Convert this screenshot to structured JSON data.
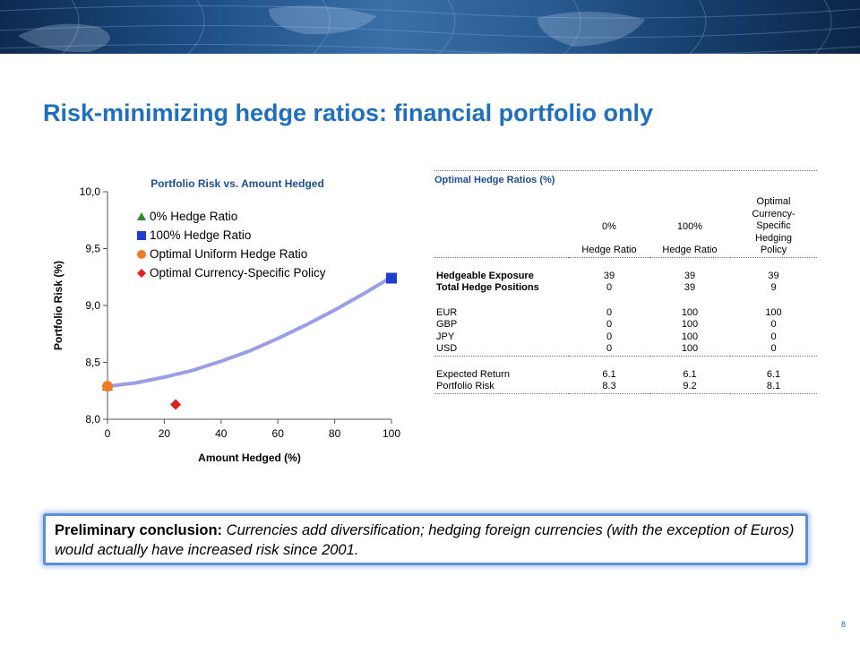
{
  "page": {
    "title": "Risk-minimizing hedge ratios: financial portfolio only",
    "page_number": "8"
  },
  "chart_data": {
    "type": "scatter",
    "title": "Portfolio Risk vs. Amount Hedged",
    "xlabel": "Amount Hedged (%)",
    "ylabel": "Portfolio Risk (%)",
    "xlim": [
      0,
      100
    ],
    "ylim": [
      8.0,
      10.0
    ],
    "x_ticks": [
      "0",
      "20",
      "40",
      "60",
      "80",
      "100"
    ],
    "y_ticks": [
      "8,0",
      "8,5",
      "9,0",
      "9,5",
      "10,0"
    ],
    "curve": {
      "x": [
        0,
        10,
        20,
        30,
        40,
        50,
        60,
        70,
        80,
        90,
        100
      ],
      "y": [
        8.29,
        8.32,
        8.37,
        8.43,
        8.51,
        8.6,
        8.71,
        8.83,
        8.96,
        9.1,
        9.25
      ]
    },
    "series": [
      {
        "name": "0% Hedge Ratio",
        "marker": "triangle",
        "color": "#2e8b2e",
        "x": [
          0
        ],
        "y": [
          8.29
        ]
      },
      {
        "name": "100% Hedge Ratio",
        "marker": "square",
        "color": "#1f3fcf",
        "x": [
          100
        ],
        "y": [
          9.24
        ]
      },
      {
        "name": "Optimal Uniform Hedge Ratio",
        "marker": "circle",
        "color": "#f07c2a",
        "x": [
          0
        ],
        "y": [
          8.29
        ]
      },
      {
        "name": "Optimal Currency-Specific Policy",
        "marker": "diamond",
        "color": "#e0201a",
        "x": [
          24
        ],
        "y": [
          8.13
        ]
      }
    ],
    "legend_position": "top-left",
    "curve_color": "#9a9ee8"
  },
  "table": {
    "title": "Optimal Hedge Ratios (%)",
    "columns": [
      {
        "top": "0%",
        "bottom": "Hedge Ratio"
      },
      {
        "top": "100%",
        "bottom": "Hedge Ratio"
      },
      {
        "lines": [
          "Optimal",
          "Currency-",
          "Specific",
          "Hedging",
          "Policy"
        ]
      }
    ],
    "rows_a": [
      {
        "label": "Hedgeable Exposure",
        "values": [
          "39",
          "39",
          "39"
        ]
      },
      {
        "label": "Total Hedge Positions",
        "values": [
          "0",
          "39",
          "9"
        ]
      }
    ],
    "rows_b": [
      {
        "label": "EUR",
        "values": [
          "0",
          "100",
          "100"
        ]
      },
      {
        "label": "GBP",
        "values": [
          "0",
          "100",
          "0"
        ]
      },
      {
        "label": "JPY",
        "values": [
          "0",
          "100",
          "0"
        ]
      },
      {
        "label": "USD",
        "values": [
          "0",
          "100",
          "0"
        ]
      }
    ],
    "rows_c": [
      {
        "label": "Expected Return",
        "values": [
          "6.1",
          "6.1",
          "6.1"
        ]
      },
      {
        "label": "Portfolio Risk",
        "values": [
          "8.3",
          "9.2",
          "8.1"
        ]
      }
    ]
  },
  "conclusion": {
    "lead": "Preliminary conclusion:",
    "text": " Currencies add diversification; hedging foreign currencies (with the exception of Euros) would actually have increased risk since 2001."
  }
}
